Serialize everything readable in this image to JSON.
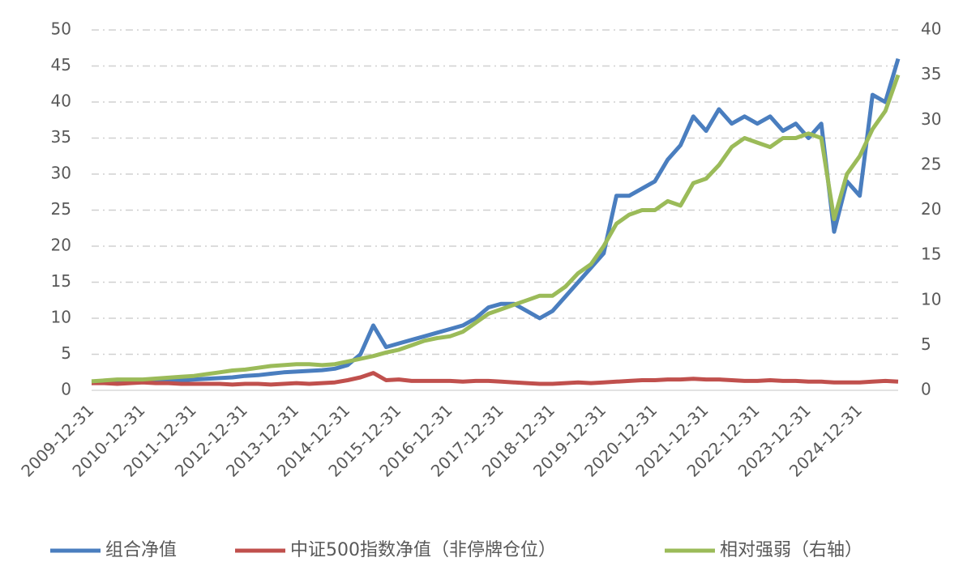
{
  "chart_data": {
    "type": "line",
    "categories": [
      "2009-12-31",
      null,
      null,
      null,
      "2010-12-31",
      null,
      null,
      null,
      "2011-12-31",
      null,
      null,
      null,
      "2012-12-31",
      null,
      null,
      null,
      "2013-12-31",
      null,
      null,
      null,
      "2014-12-31",
      null,
      null,
      null,
      "2015-12-31",
      null,
      null,
      null,
      "2016-12-31",
      null,
      null,
      null,
      "2017-12-31",
      null,
      null,
      null,
      "2018-12-31",
      null,
      null,
      null,
      "2019-12-31",
      null,
      null,
      null,
      "2020-12-31",
      null,
      null,
      null,
      "2021-12-31",
      null,
      null,
      null,
      "2022-12-31",
      null,
      null,
      null,
      "2023-12-31",
      null,
      null,
      null,
      "2024-12-31",
      null,
      null,
      null
    ],
    "series": [
      {
        "name": "组合净值",
        "color": "#4a7ebf",
        "values": [
          1.0,
          1.1,
          1.1,
          1.2,
          1.3,
          1.3,
          1.4,
          1.4,
          1.5,
          1.6,
          1.7,
          1.8,
          2.0,
          2.1,
          2.3,
          2.5,
          2.6,
          2.7,
          2.8,
          3.0,
          3.5,
          5.0,
          9.0,
          6.0,
          6.5,
          7.0,
          7.5,
          8.0,
          8.5,
          9.0,
          10.0,
          11.5,
          12.0,
          12.0,
          11.0,
          10.0,
          11.0,
          13.0,
          15.0,
          17.0,
          19.0,
          27.0,
          27.0,
          28.0,
          29.0,
          32.0,
          34.0,
          38.0,
          36.0,
          39.0,
          37.0,
          38.0,
          37.0,
          38.0,
          36.0,
          37.0,
          35.0,
          37.0,
          22.0,
          29.0,
          27.0,
          41.0,
          40.0,
          46.0
        ]
      },
      {
        "name": "中证500指数净值（非停牌仓位）",
        "color": "#c0504d",
        "values": [
          1.0,
          1.0,
          0.9,
          1.0,
          1.1,
          1.0,
          1.0,
          0.9,
          0.9,
          0.9,
          0.9,
          0.8,
          0.9,
          0.9,
          0.8,
          0.9,
          1.0,
          0.9,
          1.0,
          1.1,
          1.4,
          1.8,
          2.4,
          1.4,
          1.5,
          1.3,
          1.3,
          1.3,
          1.3,
          1.2,
          1.3,
          1.3,
          1.2,
          1.1,
          1.0,
          0.9,
          0.9,
          1.0,
          1.1,
          1.0,
          1.1,
          1.2,
          1.3,
          1.4,
          1.4,
          1.5,
          1.5,
          1.6,
          1.5,
          1.5,
          1.4,
          1.3,
          1.3,
          1.4,
          1.3,
          1.3,
          1.2,
          1.2,
          1.1,
          1.1,
          1.1,
          1.2,
          1.3,
          1.2
        ]
      },
      {
        "name": "相对强弱（右轴）",
        "color": "#9bbb59",
        "axis": "y2",
        "values": [
          1.0,
          1.1,
          1.2,
          1.2,
          1.2,
          1.3,
          1.4,
          1.5,
          1.6,
          1.8,
          2.0,
          2.2,
          2.3,
          2.5,
          2.7,
          2.8,
          2.9,
          2.9,
          2.8,
          2.9,
          3.2,
          3.5,
          3.8,
          4.2,
          4.5,
          5.0,
          5.5,
          5.8,
          6.0,
          6.5,
          7.5,
          8.5,
          9.0,
          9.5,
          10.0,
          10.5,
          10.5,
          11.5,
          13.0,
          14.0,
          16.0,
          18.5,
          19.5,
          20.0,
          20.0,
          21.0,
          20.5,
          23.0,
          23.5,
          25.0,
          27.0,
          28.0,
          27.5,
          27.0,
          28.0,
          28.0,
          28.5,
          28.0,
          19.0,
          24.0,
          26.0,
          29.0,
          31.0,
          35.0
        ]
      }
    ],
    "ylim": [
      0,
      50
    ],
    "yticks": [
      0,
      5,
      10,
      15,
      20,
      25,
      30,
      35,
      40,
      45,
      50
    ],
    "y2lim": [
      0,
      40
    ],
    "y2ticks": [
      0,
      5,
      10,
      15,
      20,
      25,
      30,
      35,
      40
    ],
    "grid": true,
    "legend": "bottom"
  }
}
